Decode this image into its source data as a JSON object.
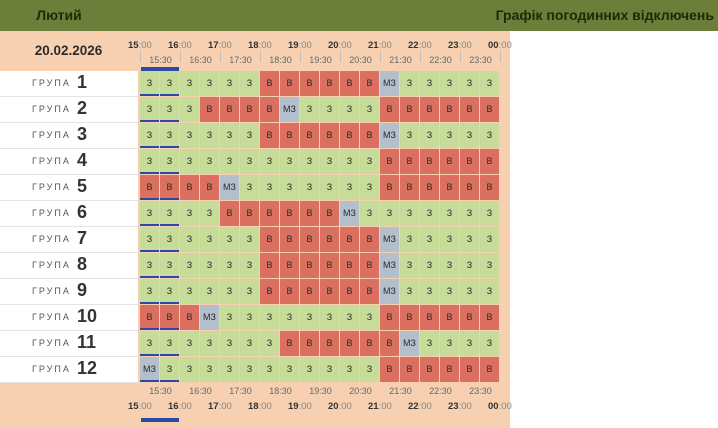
{
  "header": {
    "month": "Лютий",
    "title": "Графік погодинних відключень"
  },
  "date": "20.02.2026",
  "hour_labels": [
    "15:00",
    "16:00",
    "17:00",
    "18:00",
    "19:00",
    "20:00",
    "21:00",
    "22:00",
    "23:00",
    "00:00"
  ],
  "half_labels": [
    "15:30",
    "16:30",
    "17:30",
    "18:30",
    "19:30",
    "20:30",
    "21:30",
    "22:30",
    "23:30"
  ],
  "group_label": "ГРУПА",
  "legend_codes": {
    "on": "З",
    "off": "В",
    "maybe": "МЗ"
  },
  "colors": {
    "header_bg": "#6c7e3a",
    "panel_bg": "#f6d0b0",
    "on": "#c8dc9a",
    "off": "#dc7060",
    "maybe": "#b3c0cc",
    "now": "#2b4aa6"
  },
  "groups": [
    {
      "num": "1",
      "slots": [
        "З",
        "З",
        "З",
        "З",
        "З",
        "З",
        "В",
        "В",
        "В",
        "В",
        "В",
        "В",
        "МЗ",
        "З",
        "З",
        "З",
        "З",
        "З"
      ]
    },
    {
      "num": "2",
      "slots": [
        "З",
        "З",
        "З",
        "В",
        "В",
        "В",
        "В",
        "МЗ",
        "З",
        "З",
        "З",
        "З",
        "В",
        "В",
        "В",
        "В",
        "В",
        "В"
      ]
    },
    {
      "num": "3",
      "slots": [
        "З",
        "З",
        "З",
        "З",
        "З",
        "З",
        "В",
        "В",
        "В",
        "В",
        "В",
        "В",
        "МЗ",
        "З",
        "З",
        "З",
        "З",
        "З"
      ]
    },
    {
      "num": "4",
      "slots": [
        "З",
        "З",
        "З",
        "З",
        "З",
        "З",
        "З",
        "З",
        "З",
        "З",
        "З",
        "З",
        "В",
        "В",
        "В",
        "В",
        "В",
        "В"
      ]
    },
    {
      "num": "5",
      "slots": [
        "В",
        "В",
        "В",
        "В",
        "МЗ",
        "З",
        "З",
        "З",
        "З",
        "З",
        "З",
        "З",
        "В",
        "В",
        "В",
        "В",
        "В",
        "В"
      ]
    },
    {
      "num": "6",
      "slots": [
        "З",
        "З",
        "З",
        "З",
        "В",
        "В",
        "В",
        "В",
        "В",
        "В",
        "МЗ",
        "З",
        "З",
        "З",
        "З",
        "З",
        "З",
        "З"
      ]
    },
    {
      "num": "7",
      "slots": [
        "З",
        "З",
        "З",
        "З",
        "З",
        "З",
        "В",
        "В",
        "В",
        "В",
        "В",
        "В",
        "МЗ",
        "З",
        "З",
        "З",
        "З",
        "З"
      ]
    },
    {
      "num": "8",
      "slots": [
        "З",
        "З",
        "З",
        "З",
        "З",
        "З",
        "В",
        "В",
        "В",
        "В",
        "В",
        "В",
        "МЗ",
        "З",
        "З",
        "З",
        "З",
        "З"
      ]
    },
    {
      "num": "9",
      "slots": [
        "З",
        "З",
        "З",
        "З",
        "З",
        "З",
        "В",
        "В",
        "В",
        "В",
        "В",
        "В",
        "МЗ",
        "З",
        "З",
        "З",
        "З",
        "З"
      ]
    },
    {
      "num": "10",
      "slots": [
        "В",
        "В",
        "В",
        "МЗ",
        "З",
        "З",
        "З",
        "З",
        "З",
        "З",
        "З",
        "З",
        "В",
        "В",
        "В",
        "В",
        "В",
        "В"
      ]
    },
    {
      "num": "11",
      "slots": [
        "З",
        "З",
        "З",
        "З",
        "З",
        "З",
        "З",
        "В",
        "В",
        "В",
        "В",
        "В",
        "В",
        "МЗ",
        "З",
        "З",
        "З",
        "З"
      ]
    },
    {
      "num": "12",
      "slots": [
        "МЗ",
        "З",
        "З",
        "З",
        "З",
        "З",
        "З",
        "З",
        "З",
        "З",
        "З",
        "З",
        "В",
        "В",
        "В",
        "В",
        "В",
        "В"
      ]
    }
  ]
}
